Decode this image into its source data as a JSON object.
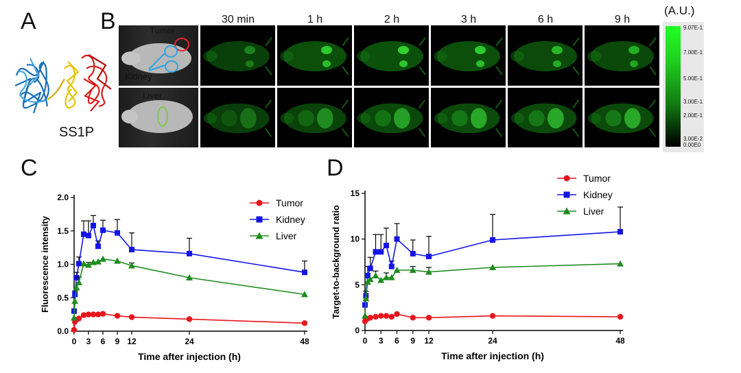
{
  "panels": {
    "a": "A",
    "b": "B",
    "c": "C",
    "d": "D"
  },
  "protein_label": "SS1P",
  "imaging": {
    "timepoints": [
      "30 min",
      "1 h",
      "2 h",
      "3 h",
      "6 h",
      "9 h"
    ],
    "roi_labels": {
      "tumor": "Tumor",
      "kidney": "Kidney",
      "liver": "Liver"
    },
    "roi_colors": {
      "tumor": "#e8232a",
      "kidney": "#2aa6e0",
      "liver": "#7ec850"
    },
    "colorbar": {
      "unit": "(A.U.)",
      "ticks": [
        "9.07E-1",
        "7.00E-1",
        "5.00E-1",
        "3.00E-1",
        "2.00E-1",
        "3.00E-2",
        "0.00E0"
      ]
    }
  },
  "chart_data": [
    {
      "type": "line",
      "panel": "C",
      "xlabel": "Time after injection (h)",
      "ylabel": "Fluorescence intensity",
      "xlim": [
        0,
        48
      ],
      "ylim": [
        0,
        2.0
      ],
      "xticks": [
        0,
        3,
        6,
        9,
        12,
        24,
        48
      ],
      "yticks": [
        "0.0",
        "0.5",
        "1.0",
        "1.5",
        "2.0"
      ],
      "legend_position": "top-right",
      "x": [
        0,
        0.17,
        0.5,
        1,
        2,
        3,
        4,
        5,
        6,
        9,
        12,
        24,
        48
      ],
      "series": [
        {
          "name": "Tumor",
          "color": "#e8141c",
          "marker": "circle",
          "values": [
            0.02,
            0.14,
            0.17,
            0.19,
            0.24,
            0.25,
            0.25,
            0.25,
            0.26,
            0.23,
            0.21,
            0.18,
            0.12
          ],
          "err": [
            0,
            0,
            0,
            0,
            0,
            0,
            0,
            0,
            0,
            0,
            0,
            0,
            0
          ]
        },
        {
          "name": "Kidney",
          "color": "#1414e8",
          "marker": "square",
          "values": [
            0.3,
            0.55,
            0.8,
            1.01,
            1.45,
            1.43,
            1.58,
            1.27,
            1.51,
            1.47,
            1.22,
            1.16,
            0.88
          ],
          "err": [
            0,
            0.05,
            0.08,
            0.1,
            0.2,
            0.22,
            0.15,
            0.08,
            0.15,
            0.2,
            0.25,
            0.23,
            0.17
          ]
        },
        {
          "name": "Liver",
          "color": "#1e8c1e",
          "marker": "triangle",
          "values": [
            0.2,
            0.45,
            0.65,
            0.73,
            1.01,
            0.99,
            1.03,
            1.04,
            1.08,
            1.05,
            0.98,
            0.8,
            0.55
          ],
          "err": [
            0,
            0,
            0,
            0.08,
            0,
            0.04,
            0,
            0,
            0,
            0,
            0.04,
            0,
            0
          ]
        }
      ]
    },
    {
      "type": "line",
      "panel": "D",
      "xlabel": "Time after injection (h)",
      "ylabel": "Target-to-background ratio",
      "xlim": [
        0,
        48
      ],
      "ylim": [
        0,
        15
      ],
      "xticks": [
        0,
        3,
        6,
        9,
        12,
        24,
        48
      ],
      "yticks": [
        "0",
        "5",
        "10",
        "15"
      ],
      "legend_position": "top-right",
      "x": [
        0,
        0.17,
        0.5,
        1,
        2,
        3,
        4,
        5,
        6,
        9,
        12,
        24,
        48
      ],
      "series": [
        {
          "name": "Tumor",
          "color": "#e8141c",
          "marker": "circle",
          "values": [
            1.0,
            1.2,
            1.3,
            1.4,
            1.5,
            1.6,
            1.6,
            1.5,
            1.8,
            1.4,
            1.4,
            1.6,
            1.5
          ],
          "err": [
            0,
            0,
            0,
            0,
            0,
            0,
            0,
            0,
            0,
            0,
            0,
            0,
            0
          ]
        },
        {
          "name": "Kidney",
          "color": "#1414e8",
          "marker": "square",
          "values": [
            2.8,
            3.8,
            6.0,
            6.8,
            8.6,
            8.6,
            9.3,
            7.0,
            10.0,
            8.4,
            8.1,
            9.9,
            10.8
          ],
          "err": [
            0,
            0.5,
            1.0,
            1.2,
            1.9,
            1.9,
            1.9,
            0.6,
            1.7,
            1.5,
            2.2,
            2.8,
            2.7
          ]
        },
        {
          "name": "Liver",
          "color": "#1e8c1e",
          "marker": "triangle",
          "values": [
            1.6,
            3.5,
            5.3,
            5.6,
            6.0,
            5.5,
            5.8,
            5.8,
            6.6,
            6.6,
            6.4,
            6.9,
            7.3
          ],
          "err": [
            0,
            0,
            0,
            0,
            0.5,
            0,
            0.5,
            0,
            0,
            0.4,
            0.5,
            0,
            0
          ]
        }
      ]
    }
  ]
}
